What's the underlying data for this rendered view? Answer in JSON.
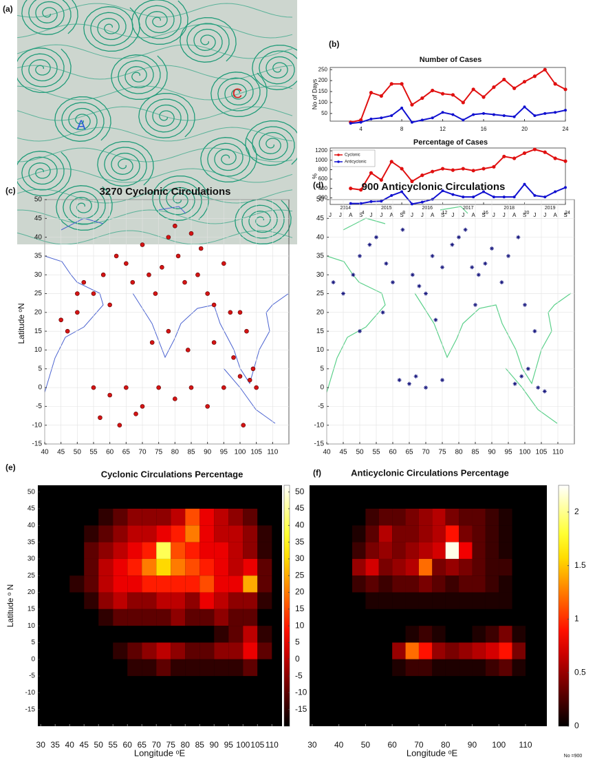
{
  "panel_a": {
    "label": "(a)",
    "markers": [
      "A",
      "C"
    ]
  },
  "footnote": "No =900",
  "chart_data": [
    {
      "type": "line",
      "panel_label": "(b)",
      "title": "Number of Cases",
      "y_label": "No of Days",
      "x": [
        3,
        4,
        5,
        6,
        7,
        8,
        9,
        10,
        11,
        12,
        13,
        14,
        15,
        16,
        17,
        18,
        19,
        20,
        21,
        22,
        23,
        24
      ],
      "series": [
        {
          "color": "#e01010",
          "values": [
            10,
            20,
            145,
            130,
            185,
            185,
            90,
            120,
            155,
            140,
            135,
            100,
            160,
            125,
            170,
            205,
            165,
            195,
            220,
            250,
            185,
            160
          ]
        },
        {
          "color": "#1010d0",
          "values": [
            5,
            10,
            25,
            30,
            40,
            75,
            10,
            20,
            30,
            55,
            45,
            20,
            45,
            50,
            45,
            40,
            35,
            80,
            40,
            50,
            55,
            65
          ]
        }
      ],
      "xlim": [
        1,
        24
      ],
      "xticks": [
        4,
        8,
        12,
        16,
        20,
        24
      ],
      "ylim": [
        15,
        260
      ],
      "yticks": [
        50,
        100,
        150,
        200,
        250
      ]
    },
    {
      "type": "line",
      "title": "Percentage of Cases",
      "y_label": "%",
      "x": [
        3,
        4,
        5,
        6,
        7,
        8,
        9,
        10,
        11,
        12,
        13,
        14,
        15,
        16,
        17,
        18,
        19,
        20,
        21,
        22,
        23,
        24
      ],
      "series": [
        {
          "name": "Cyclonic",
          "color": "#e01010",
          "values": [
            400,
            370,
            730,
            580,
            970,
            820,
            550,
            680,
            760,
            820,
            790,
            820,
            780,
            820,
            860,
            1080,
            1040,
            1150,
            1230,
            1170,
            1040,
            980
          ]
        },
        {
          "name": "Anticyclonic",
          "color": "#1010d0",
          "values": [
            80,
            80,
            120,
            130,
            250,
            330,
            70,
            110,
            170,
            350,
            270,
            220,
            220,
            330,
            220,
            220,
            220,
            490,
            250,
            220,
            330,
            420
          ]
        }
      ],
      "legend": "upper left",
      "xlim": [
        1,
        24
      ],
      "xticks": [
        4,
        8,
        12,
        16,
        20,
        24
      ],
      "ylim": [
        60,
        1260
      ],
      "yticks": [
        200,
        400,
        600,
        800,
        1000,
        1200
      ],
      "years": [
        "2014",
        "2015",
        "2016",
        "2017",
        "2018",
        "2019"
      ],
      "month_labels": [
        "J",
        "J",
        "A",
        "S",
        "J",
        "J",
        "A",
        "S",
        "J",
        "J",
        "A",
        "S",
        "J",
        "J",
        "A",
        "S",
        "J",
        "J",
        "A",
        "S",
        "J",
        "J",
        "A",
        "S"
      ]
    },
    {
      "type": "scatter",
      "panel_label": "(c)",
      "title": "3270 Cyclonic Circulations",
      "y_label": "Latitude ᵒN",
      "marker": "circle",
      "color": "#d41414",
      "grid": true,
      "x": [
        47,
        50,
        52,
        55,
        58,
        60,
        62,
        65,
        67,
        70,
        72,
        74,
        76,
        78,
        80,
        81,
        83,
        85,
        87,
        88,
        90,
        92,
        95,
        97,
        100,
        102,
        104,
        55,
        60,
        65,
        70,
        75,
        80,
        85,
        90,
        95,
        100,
        103,
        57,
        63,
        68,
        73,
        78,
        84,
        92,
        98,
        101,
        105,
        50,
        45
      ],
      "y": [
        15,
        20,
        28,
        25,
        30,
        22,
        35,
        33,
        28,
        38,
        30,
        25,
        32,
        40,
        43,
        35,
        28,
        41,
        30,
        37,
        25,
        22,
        33,
        20,
        20,
        15,
        5,
        0,
        -2,
        0,
        -5,
        0,
        -3,
        0,
        -5,
        0,
        3,
        2,
        -8,
        -10,
        -7,
        12,
        15,
        10,
        12,
        8,
        -10,
        0,
        25,
        18
      ],
      "xlim": [
        40,
        115
      ],
      "xticks": [
        40,
        45,
        50,
        55,
        60,
        65,
        70,
        75,
        80,
        85,
        90,
        95,
        100,
        105,
        110
      ],
      "ylim": [
        -15,
        50
      ],
      "yticks": [
        -15,
        -10,
        -5,
        0,
        5,
        10,
        15,
        20,
        25,
        30,
        35,
        40,
        45,
        50
      ]
    },
    {
      "type": "scatter",
      "panel_label": "(d)",
      "title": "900 Anticyclonic Circulations",
      "marker": "star",
      "color": "#1a1a80",
      "grid": true,
      "x": [
        42,
        45,
        48,
        50,
        53,
        55,
        58,
        60,
        63,
        66,
        68,
        70,
        72,
        75,
        78,
        80,
        82,
        84,
        86,
        88,
        90,
        93,
        95,
        98,
        100,
        103,
        65,
        67,
        70,
        62,
        75,
        97,
        99,
        101,
        104,
        106,
        50,
        57,
        73,
        85
      ],
      "y": [
        28,
        25,
        30,
        35,
        38,
        40,
        33,
        28,
        42,
        30,
        27,
        25,
        35,
        32,
        38,
        40,
        42,
        32,
        30,
        33,
        37,
        28,
        35,
        40,
        22,
        15,
        1,
        3,
        0,
        2,
        2,
        1,
        3,
        5,
        0,
        -1,
        15,
        20,
        18,
        22
      ],
      "xlim": [
        40,
        115
      ],
      "xticks": [
        40,
        45,
        50,
        55,
        60,
        65,
        70,
        75,
        80,
        85,
        90,
        95,
        100,
        105,
        110
      ],
      "ylim": [
        -15,
        50
      ],
      "yticks": [
        -15,
        -10,
        -5,
        0,
        5,
        10,
        15,
        20,
        25,
        30,
        35,
        40,
        45,
        50
      ]
    },
    {
      "type": "heatmap",
      "panel_label": "(e)",
      "title": "Cyclonic Circulations Percentage",
      "y_label": "Latitude ᵒ N",
      "x_label": "Longitude ᵒE",
      "lon": [
        40,
        45,
        50,
        55,
        60,
        65,
        70,
        75,
        80,
        85,
        90,
        95,
        100,
        105
      ],
      "lat": [
        40,
        35,
        30,
        25,
        20,
        15,
        10,
        5,
        0,
        -5
      ],
      "z": [
        [
          -20,
          -20,
          -15,
          -10,
          -5,
          -5,
          -5,
          0,
          15,
          5,
          0,
          -5,
          -10,
          -20
        ],
        [
          -20,
          -15,
          -10,
          -5,
          0,
          0,
          5,
          10,
          20,
          5,
          0,
          0,
          -5,
          -15
        ],
        [
          -20,
          -10,
          -5,
          0,
          5,
          10,
          40,
          15,
          10,
          5,
          5,
          0,
          -5,
          -15
        ],
        [
          -20,
          -10,
          0,
          5,
          10,
          20,
          30,
          20,
          15,
          10,
          5,
          0,
          5,
          -10
        ],
        [
          -15,
          -10,
          0,
          5,
          5,
          10,
          10,
          10,
          10,
          15,
          5,
          5,
          25,
          -10
        ],
        [
          -20,
          -15,
          -5,
          0,
          -5,
          -5,
          0,
          0,
          -5,
          5,
          0,
          -5,
          -5,
          -15
        ],
        [
          -20,
          -20,
          -15,
          -10,
          -10,
          -10,
          -10,
          -5,
          -10,
          -10,
          -5,
          -10,
          -10,
          -20
        ],
        [
          -20,
          -20,
          -20,
          -20,
          -20,
          -20,
          -20,
          -20,
          -20,
          -20,
          -15,
          -10,
          0,
          -15
        ],
        [
          -20,
          -20,
          -20,
          -15,
          -10,
          -5,
          0,
          -5,
          -10,
          -10,
          -5,
          -5,
          5,
          -10
        ],
        [
          -20,
          -20,
          -20,
          -20,
          -15,
          -15,
          -10,
          -15,
          -15,
          -15,
          -15,
          -15,
          -10,
          -20
        ]
      ],
      "zlim": [
        -20,
        52
      ],
      "zticks": [
        -15,
        -10,
        -5,
        0,
        5,
        10,
        15,
        20,
        25,
        30,
        35,
        40,
        45,
        50
      ],
      "xlim": [
        29,
        113.5
      ],
      "xticks": [
        30,
        35,
        40,
        45,
        50,
        55,
        60,
        65,
        70,
        75,
        80,
        85,
        90,
        95,
        100,
        105,
        110
      ],
      "ylim": [
        -20,
        52
      ],
      "yticks": [
        -15,
        -10,
        -5,
        0,
        5,
        10,
        15,
        20,
        25,
        30,
        35,
        40,
        45,
        50
      ]
    },
    {
      "type": "heatmap",
      "panel_label": "(f)",
      "title": "Anticyclonic Circulations Percentage",
      "x_label": "Longitude ᵒE",
      "lon": [
        40,
        45,
        50,
        55,
        60,
        65,
        70,
        75,
        80,
        85,
        90,
        95,
        100,
        105
      ],
      "lat": [
        40,
        35,
        30,
        25,
        20,
        15,
        10,
        5,
        0,
        -5
      ],
      "z": [
        [
          0,
          0,
          0.2,
          0.3,
          0.3,
          0.4,
          0.5,
          0.6,
          0.4,
          0.3,
          0.3,
          0.2,
          0.1,
          0
        ],
        [
          0,
          0.1,
          0.3,
          0.6,
          0.4,
          0.4,
          0.5,
          0.6,
          0.9,
          0.4,
          0.3,
          0.2,
          0.1,
          0
        ],
        [
          0,
          0.2,
          0.4,
          0.5,
          0.4,
          0.5,
          0.6,
          0.7,
          2.2,
          0.8,
          0.3,
          0.2,
          0.1,
          0
        ],
        [
          0,
          0.5,
          0.7,
          0.4,
          0.5,
          0.6,
          1.2,
          0.4,
          0.5,
          0.4,
          0.3,
          0.2,
          0.2,
          0
        ],
        [
          0,
          0.2,
          0.3,
          0.2,
          0.3,
          0.3,
          0.4,
          0.3,
          0.2,
          0.3,
          0.3,
          0.2,
          0.1,
          0
        ],
        [
          0,
          0,
          0.1,
          0.1,
          0.1,
          0.1,
          0.1,
          0.1,
          0.1,
          0.1,
          0.1,
          0.1,
          0.1,
          0
        ],
        [
          0,
          0,
          0,
          0,
          0,
          0,
          0,
          0,
          0,
          0,
          0,
          0,
          0,
          0
        ],
        [
          0,
          0,
          0,
          0,
          0,
          0.1,
          0.2,
          0.1,
          0,
          0,
          0.1,
          0.2,
          0.4,
          0.1
        ],
        [
          0,
          0,
          0,
          0,
          0.5,
          1.2,
          0.9,
          0.5,
          0.4,
          0.5,
          0.6,
          0.7,
          0.9,
          0.4
        ],
        [
          0,
          0,
          0,
          0,
          0.1,
          0.2,
          0.2,
          0.1,
          0.1,
          0.1,
          0.1,
          0.2,
          0.3,
          0.1
        ]
      ],
      "zlim": [
        0,
        2.25
      ],
      "zticks": [
        0,
        0.5,
        1,
        1.5,
        2
      ],
      "xlim": [
        29,
        118
      ],
      "xticks": [
        30,
        40,
        50,
        60,
        70,
        80,
        90,
        100,
        110
      ],
      "ylim": [
        -20,
        52
      ]
    }
  ]
}
